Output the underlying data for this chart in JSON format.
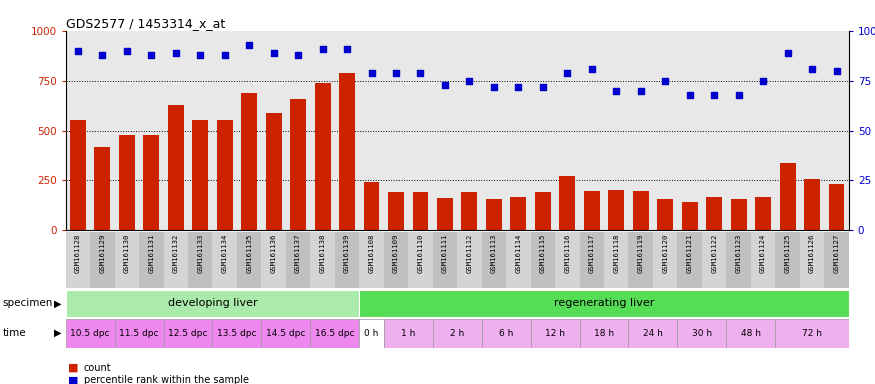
{
  "title": "GDS2577 / 1453314_x_at",
  "samples": [
    "GSM161128",
    "GSM161129",
    "GSM161130",
    "GSM161131",
    "GSM161132",
    "GSM161133",
    "GSM161134",
    "GSM161135",
    "GSM161136",
    "GSM161137",
    "GSM161138",
    "GSM161139",
    "GSM161108",
    "GSM161109",
    "GSM161110",
    "GSM161111",
    "GSM161112",
    "GSM161113",
    "GSM161114",
    "GSM161115",
    "GSM161116",
    "GSM161117",
    "GSM161118",
    "GSM161119",
    "GSM161120",
    "GSM161121",
    "GSM161122",
    "GSM161123",
    "GSM161124",
    "GSM161125",
    "GSM161126",
    "GSM161127"
  ],
  "bar_values": [
    555,
    420,
    480,
    480,
    630,
    555,
    555,
    690,
    590,
    660,
    740,
    790,
    240,
    190,
    190,
    160,
    190,
    155,
    165,
    190,
    270,
    195,
    200,
    195,
    155,
    140,
    165,
    155,
    165,
    340,
    255,
    230
  ],
  "dot_values_pct": [
    90,
    88,
    90,
    88,
    89,
    88,
    88,
    93,
    89,
    88,
    91,
    91,
    79,
    79,
    79,
    73,
    75,
    72,
    72,
    72,
    79,
    81,
    70,
    70,
    75,
    68,
    68,
    68,
    75,
    89,
    81,
    80
  ],
  "bar_color": "#cc2200",
  "dot_color": "#0000cc",
  "ylim_left": [
    0,
    1000
  ],
  "ylim_right": [
    0,
    100
  ],
  "yticks_left": [
    0,
    250,
    500,
    750,
    1000
  ],
  "yticks_right": [
    0,
    25,
    50,
    75,
    100
  ],
  "grid_values": [
    250,
    500,
    750
  ],
  "specimen_groups": [
    {
      "label": "developing liver",
      "start": 0,
      "end": 12,
      "color": "#aaeaaa"
    },
    {
      "label": "regenerating liver",
      "start": 12,
      "end": 32,
      "color": "#55dd55"
    }
  ],
  "time_groups": [
    {
      "label": "10.5 dpc",
      "start": 0,
      "end": 2,
      "color": "#ee88ee"
    },
    {
      "label": "11.5 dpc",
      "start": 2,
      "end": 4,
      "color": "#ee88ee"
    },
    {
      "label": "12.5 dpc",
      "start": 4,
      "end": 6,
      "color": "#ee88ee"
    },
    {
      "label": "13.5 dpc",
      "start": 6,
      "end": 8,
      "color": "#ee88ee"
    },
    {
      "label": "14.5 dpc",
      "start": 8,
      "end": 10,
      "color": "#ee88ee"
    },
    {
      "label": "16.5 dpc",
      "start": 10,
      "end": 12,
      "color": "#ee88ee"
    },
    {
      "label": "0 h",
      "start": 12,
      "end": 13,
      "color": "#ffffff"
    },
    {
      "label": "1 h",
      "start": 13,
      "end": 15,
      "color": "#f0b0f0"
    },
    {
      "label": "2 h",
      "start": 15,
      "end": 17,
      "color": "#f0b0f0"
    },
    {
      "label": "6 h",
      "start": 17,
      "end": 19,
      "color": "#f0b0f0"
    },
    {
      "label": "12 h",
      "start": 19,
      "end": 21,
      "color": "#f0b0f0"
    },
    {
      "label": "18 h",
      "start": 21,
      "end": 23,
      "color": "#f0b0f0"
    },
    {
      "label": "24 h",
      "start": 23,
      "end": 25,
      "color": "#f0b0f0"
    },
    {
      "label": "30 h",
      "start": 25,
      "end": 27,
      "color": "#f0b0f0"
    },
    {
      "label": "48 h",
      "start": 27,
      "end": 29,
      "color": "#f0b0f0"
    },
    {
      "label": "72 h",
      "start": 29,
      "end": 32,
      "color": "#f0b0f0"
    }
  ],
  "xtick_bg_colors": [
    "#d0d0d0",
    "#c0c0c0",
    "#d0d0d0",
    "#c0c0c0",
    "#d0d0d0",
    "#c0c0c0",
    "#d0d0d0",
    "#c0c0c0",
    "#d0d0d0",
    "#c0c0c0",
    "#d0d0d0",
    "#c0c0c0",
    "#d0d0d0",
    "#c0c0c0",
    "#d0d0d0",
    "#c0c0c0",
    "#d0d0d0",
    "#c0c0c0",
    "#d0d0d0",
    "#c0c0c0",
    "#d0d0d0",
    "#c0c0c0",
    "#d0d0d0",
    "#c0c0c0",
    "#d0d0d0",
    "#c0c0c0",
    "#d0d0d0",
    "#c0c0c0",
    "#d0d0d0",
    "#c0c0c0",
    "#d0d0d0",
    "#c0c0c0"
  ],
  "legend_count_color": "#cc2200",
  "legend_dot_color": "#0000cc",
  "plot_bg_color": "#e8e8e8",
  "fig_bg": "#ffffff"
}
